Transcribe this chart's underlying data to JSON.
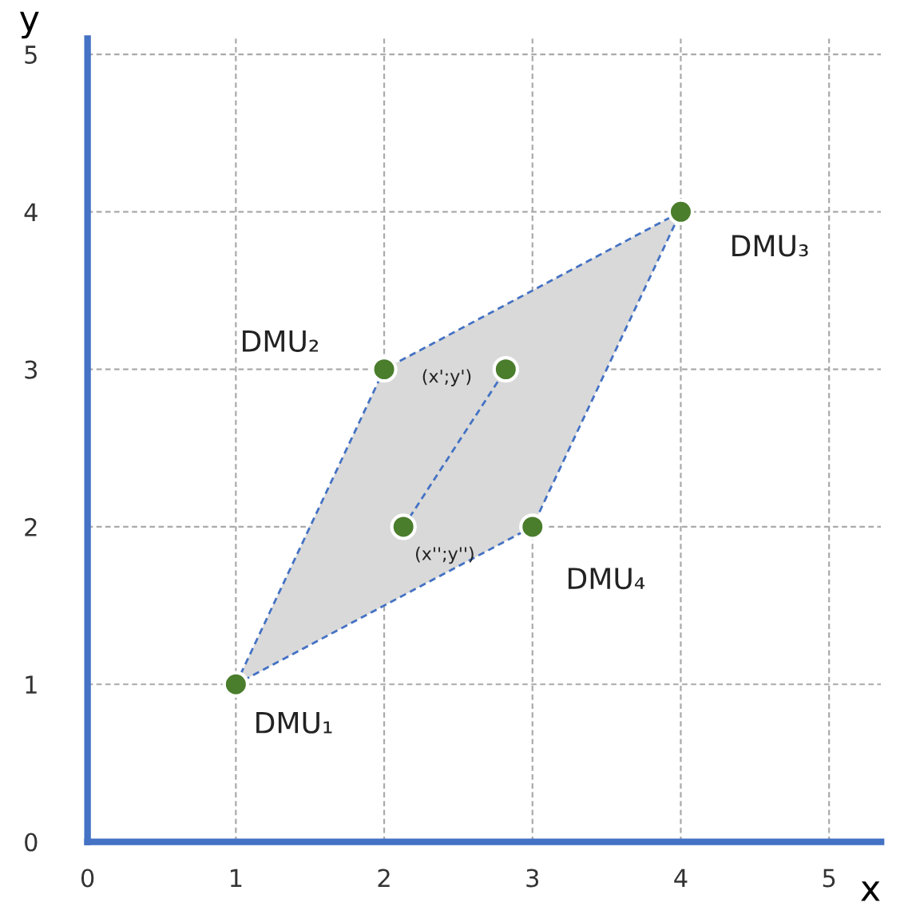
{
  "chart_data": {
    "type": "scatter",
    "xlabel": "x",
    "ylabel": "y",
    "xlim": [
      0,
      5.35
    ],
    "ylim": [
      0,
      5.1
    ],
    "xticks": [
      0,
      1,
      2,
      3,
      4,
      5
    ],
    "yticks": [
      0,
      1,
      2,
      3,
      4,
      5
    ],
    "grid": true,
    "series": [
      {
        "type": "area",
        "color": "#d9d9d9",
        "x": [
          1,
          2,
          4,
          3,
          1
        ],
        "values": [
          1,
          3,
          4,
          2,
          1
        ]
      },
      {
        "type": "line",
        "color": "#4472c4",
        "line_style": "dashed",
        "x": [
          2.13,
          2.82
        ],
        "values": [
          2.0,
          3.0
        ]
      },
      {
        "marker": "circle",
        "color": "#4a7d2c",
        "x": [
          1,
          2,
          4,
          3,
          2.82,
          2.13
        ],
        "values": [
          1,
          3,
          4,
          2,
          3.0,
          2.0
        ]
      }
    ],
    "annotations": [
      {
        "text": "DMU₁",
        "x": 1,
        "y": 1
      },
      {
        "text": "DMU₂",
        "x": 2,
        "y": 3
      },
      {
        "text": "DMU₃",
        "x": 4,
        "y": 4
      },
      {
        "text": "DMU₄",
        "x": 3,
        "y": 2
      },
      {
        "text": "(x';y')",
        "x": 2.82,
        "y": 3.0
      },
      {
        "text": "(x'';y'')",
        "x": 2.13,
        "y": 2.0
      }
    ]
  }
}
